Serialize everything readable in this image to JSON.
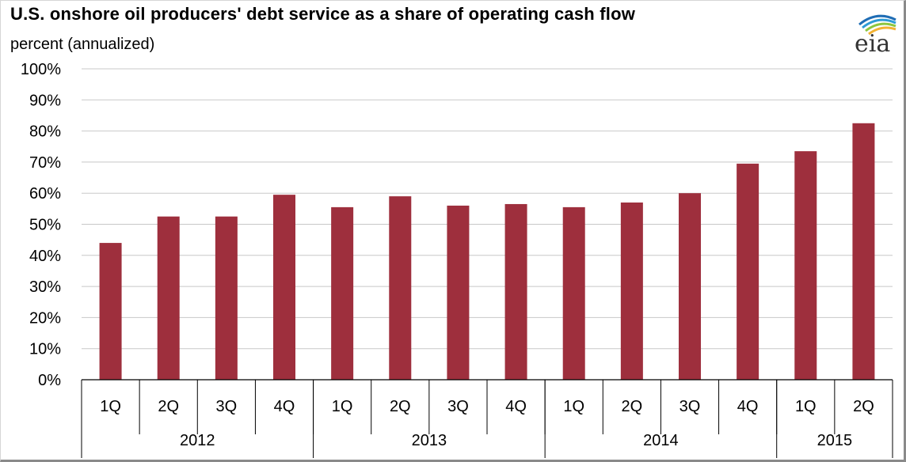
{
  "header": {
    "title": "U.S. onshore oil producers' debt service as a share of operating cash flow",
    "subtitle": "percent (annualized)"
  },
  "logo": {
    "text": "eia",
    "arc_colors": [
      "#1f6db5",
      "#2e9bd6",
      "#8cc63f",
      "#f2b233"
    ]
  },
  "chart_data": {
    "type": "bar",
    "title": "U.S. onshore oil producers' debt service as a share of operating cash flow",
    "ylabel": "percent (annualized)",
    "ylim": [
      0,
      100
    ],
    "yticks": [
      "0%",
      "10%",
      "20%",
      "30%",
      "40%",
      "50%",
      "60%",
      "70%",
      "80%",
      "90%",
      "100%"
    ],
    "categories": [
      "1Q",
      "2Q",
      "3Q",
      "4Q",
      "1Q",
      "2Q",
      "3Q",
      "4Q",
      "1Q",
      "2Q",
      "3Q",
      "4Q",
      "1Q",
      "2Q"
    ],
    "year_groups": [
      {
        "label": "2012",
        "count": 4
      },
      {
        "label": "2013",
        "count": 4
      },
      {
        "label": "2014",
        "count": 4
      },
      {
        "label": "2015",
        "count": 2
      }
    ],
    "values": [
      44,
      52.5,
      52.5,
      59.5,
      55.5,
      59,
      56,
      56.5,
      55.5,
      57,
      60,
      69.5,
      73.5,
      82.5
    ],
    "grid": true,
    "legend": "none",
    "bar_color": "#9e2f3d"
  }
}
